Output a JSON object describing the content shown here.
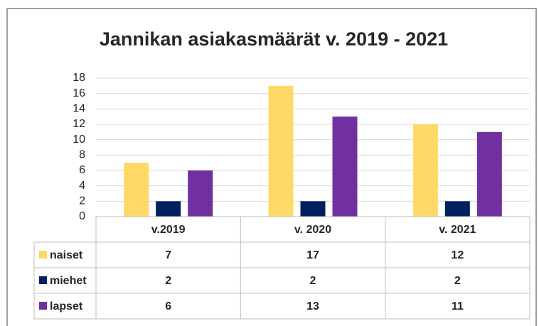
{
  "chart_data": {
    "type": "bar",
    "title": "Jannikan asiakasmäärät v. 2019 - 2021",
    "categories": [
      "v.2019",
      "v. 2020",
      "v. 2021"
    ],
    "series": [
      {
        "name": "naiset",
        "color": "#ffd966",
        "values": [
          7,
          17,
          12
        ]
      },
      {
        "name": "miehet",
        "color": "#002060",
        "values": [
          2,
          2,
          2
        ]
      },
      {
        "name": "lapset",
        "color": "#7030a0",
        "values": [
          6,
          13,
          11
        ]
      }
    ],
    "ylim": [
      0,
      18
    ],
    "yticks": [
      0,
      2,
      4,
      6,
      8,
      10,
      12,
      14,
      16,
      18
    ],
    "grid": true
  }
}
